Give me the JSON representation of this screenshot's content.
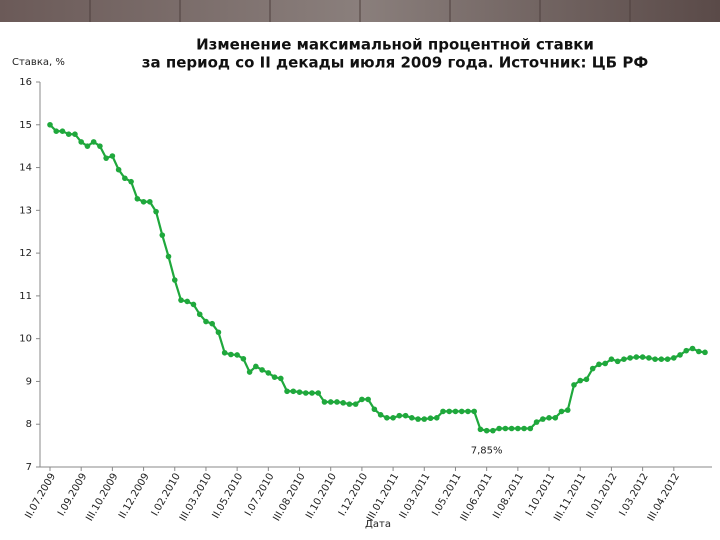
{
  "chart_data": {
    "type": "line",
    "title": "Изменение максимальной процентной ставки",
    "subtitle": "за период со II декады июля 2009 года. Источник: ЦБ РФ",
    "y_label": "Ставка, %",
    "x_label": "Дата",
    "color": "#1fa83c",
    "ylim": [
      7,
      16
    ],
    "yticks": [
      7,
      8,
      9,
      10,
      11,
      12,
      13,
      14,
      15,
      16
    ],
    "grid": false,
    "categories": [
      "II.07.2009",
      null,
      null,
      null,
      null,
      "I.09.2009",
      null,
      null,
      null,
      null,
      "III.10.2009",
      null,
      null,
      null,
      null,
      "II.12.2009",
      null,
      null,
      null,
      null,
      "I.02.2010",
      null,
      null,
      null,
      null,
      "III.03.2010",
      null,
      null,
      null,
      null,
      "II.05.2010",
      null,
      null,
      null,
      null,
      "I.07.2010",
      null,
      null,
      null,
      null,
      "III.08.2010",
      null,
      null,
      null,
      null,
      "II.10.2010",
      null,
      null,
      null,
      null,
      "I.12.2010",
      null,
      null,
      null,
      null,
      "III.01.2011",
      null,
      null,
      null,
      null,
      "II.03.2011",
      null,
      null,
      null,
      null,
      "I.05.2011",
      null,
      null,
      null,
      null,
      "III.06.2011",
      null,
      null,
      null,
      null,
      "II.08.2011",
      null,
      null,
      null,
      null,
      "I.10.2011",
      null,
      null,
      null,
      null,
      "III.11.2011",
      null,
      null,
      null,
      null,
      "II.01.2012",
      null,
      null,
      null,
      null,
      "I.03.2012",
      null,
      null,
      null,
      null,
      "III.04.2012",
      null,
      null,
      null,
      null,
      null
    ],
    "values": [
      15.0,
      14.85,
      14.85,
      14.78,
      14.78,
      14.6,
      14.5,
      14.6,
      14.5,
      14.22,
      14.27,
      13.95,
      13.75,
      13.67,
      13.27,
      13.2,
      13.2,
      12.97,
      12.42,
      11.92,
      11.37,
      10.9,
      10.87,
      10.8,
      10.57,
      10.4,
      10.35,
      10.15,
      9.67,
      9.63,
      9.62,
      9.53,
      9.22,
      9.35,
      9.27,
      9.2,
      9.1,
      9.07,
      8.77,
      8.77,
      8.75,
      8.73,
      8.73,
      8.73,
      8.52,
      8.52,
      8.52,
      8.5,
      8.47,
      8.47,
      8.58,
      8.58,
      8.35,
      8.22,
      8.15,
      8.15,
      8.2,
      8.2,
      8.15,
      8.12,
      8.12,
      8.14,
      8.15,
      8.3,
      8.3,
      8.3,
      8.3,
      8.3,
      8.3,
      7.88,
      7.85,
      7.85,
      7.9,
      7.9,
      7.9,
      7.9,
      7.9,
      7.9,
      8.05,
      8.12,
      8.15,
      8.15,
      8.3,
      8.33,
      8.92,
      9.02,
      9.05,
      9.3,
      9.4,
      9.42,
      9.52,
      9.47,
      9.52,
      9.55,
      9.57,
      9.57,
      9.55,
      9.52,
      9.52,
      9.52,
      9.55,
      9.62,
      9.72,
      9.77,
      9.7,
      9.68
    ],
    "value_labels": [
      null,
      null,
      null,
      null,
      null,
      null,
      null,
      null,
      null,
      null,
      null,
      null,
      null,
      null,
      null,
      null,
      null,
      null,
      null,
      null,
      null,
      null,
      null,
      null,
      null,
      null,
      null,
      null,
      null,
      null,
      null,
      null,
      null,
      null,
      null,
      null,
      null,
      null,
      null,
      null,
      null,
      null,
      null,
      null,
      null,
      null,
      null,
      null,
      null,
      null,
      null,
      null,
      null,
      null,
      null,
      null,
      null,
      null,
      null,
      null,
      null,
      null,
      null,
      null,
      null,
      null,
      null,
      null,
      null,
      null,
      "7,85%",
      null,
      null,
      null,
      null,
      null,
      null,
      null,
      null,
      null,
      null,
      null,
      null,
      null,
      null,
      null,
      null,
      null,
      null,
      null,
      null,
      null,
      null,
      null,
      null,
      null,
      null,
      null,
      null,
      null,
      null,
      null,
      null,
      null,
      null,
      null
    ]
  }
}
